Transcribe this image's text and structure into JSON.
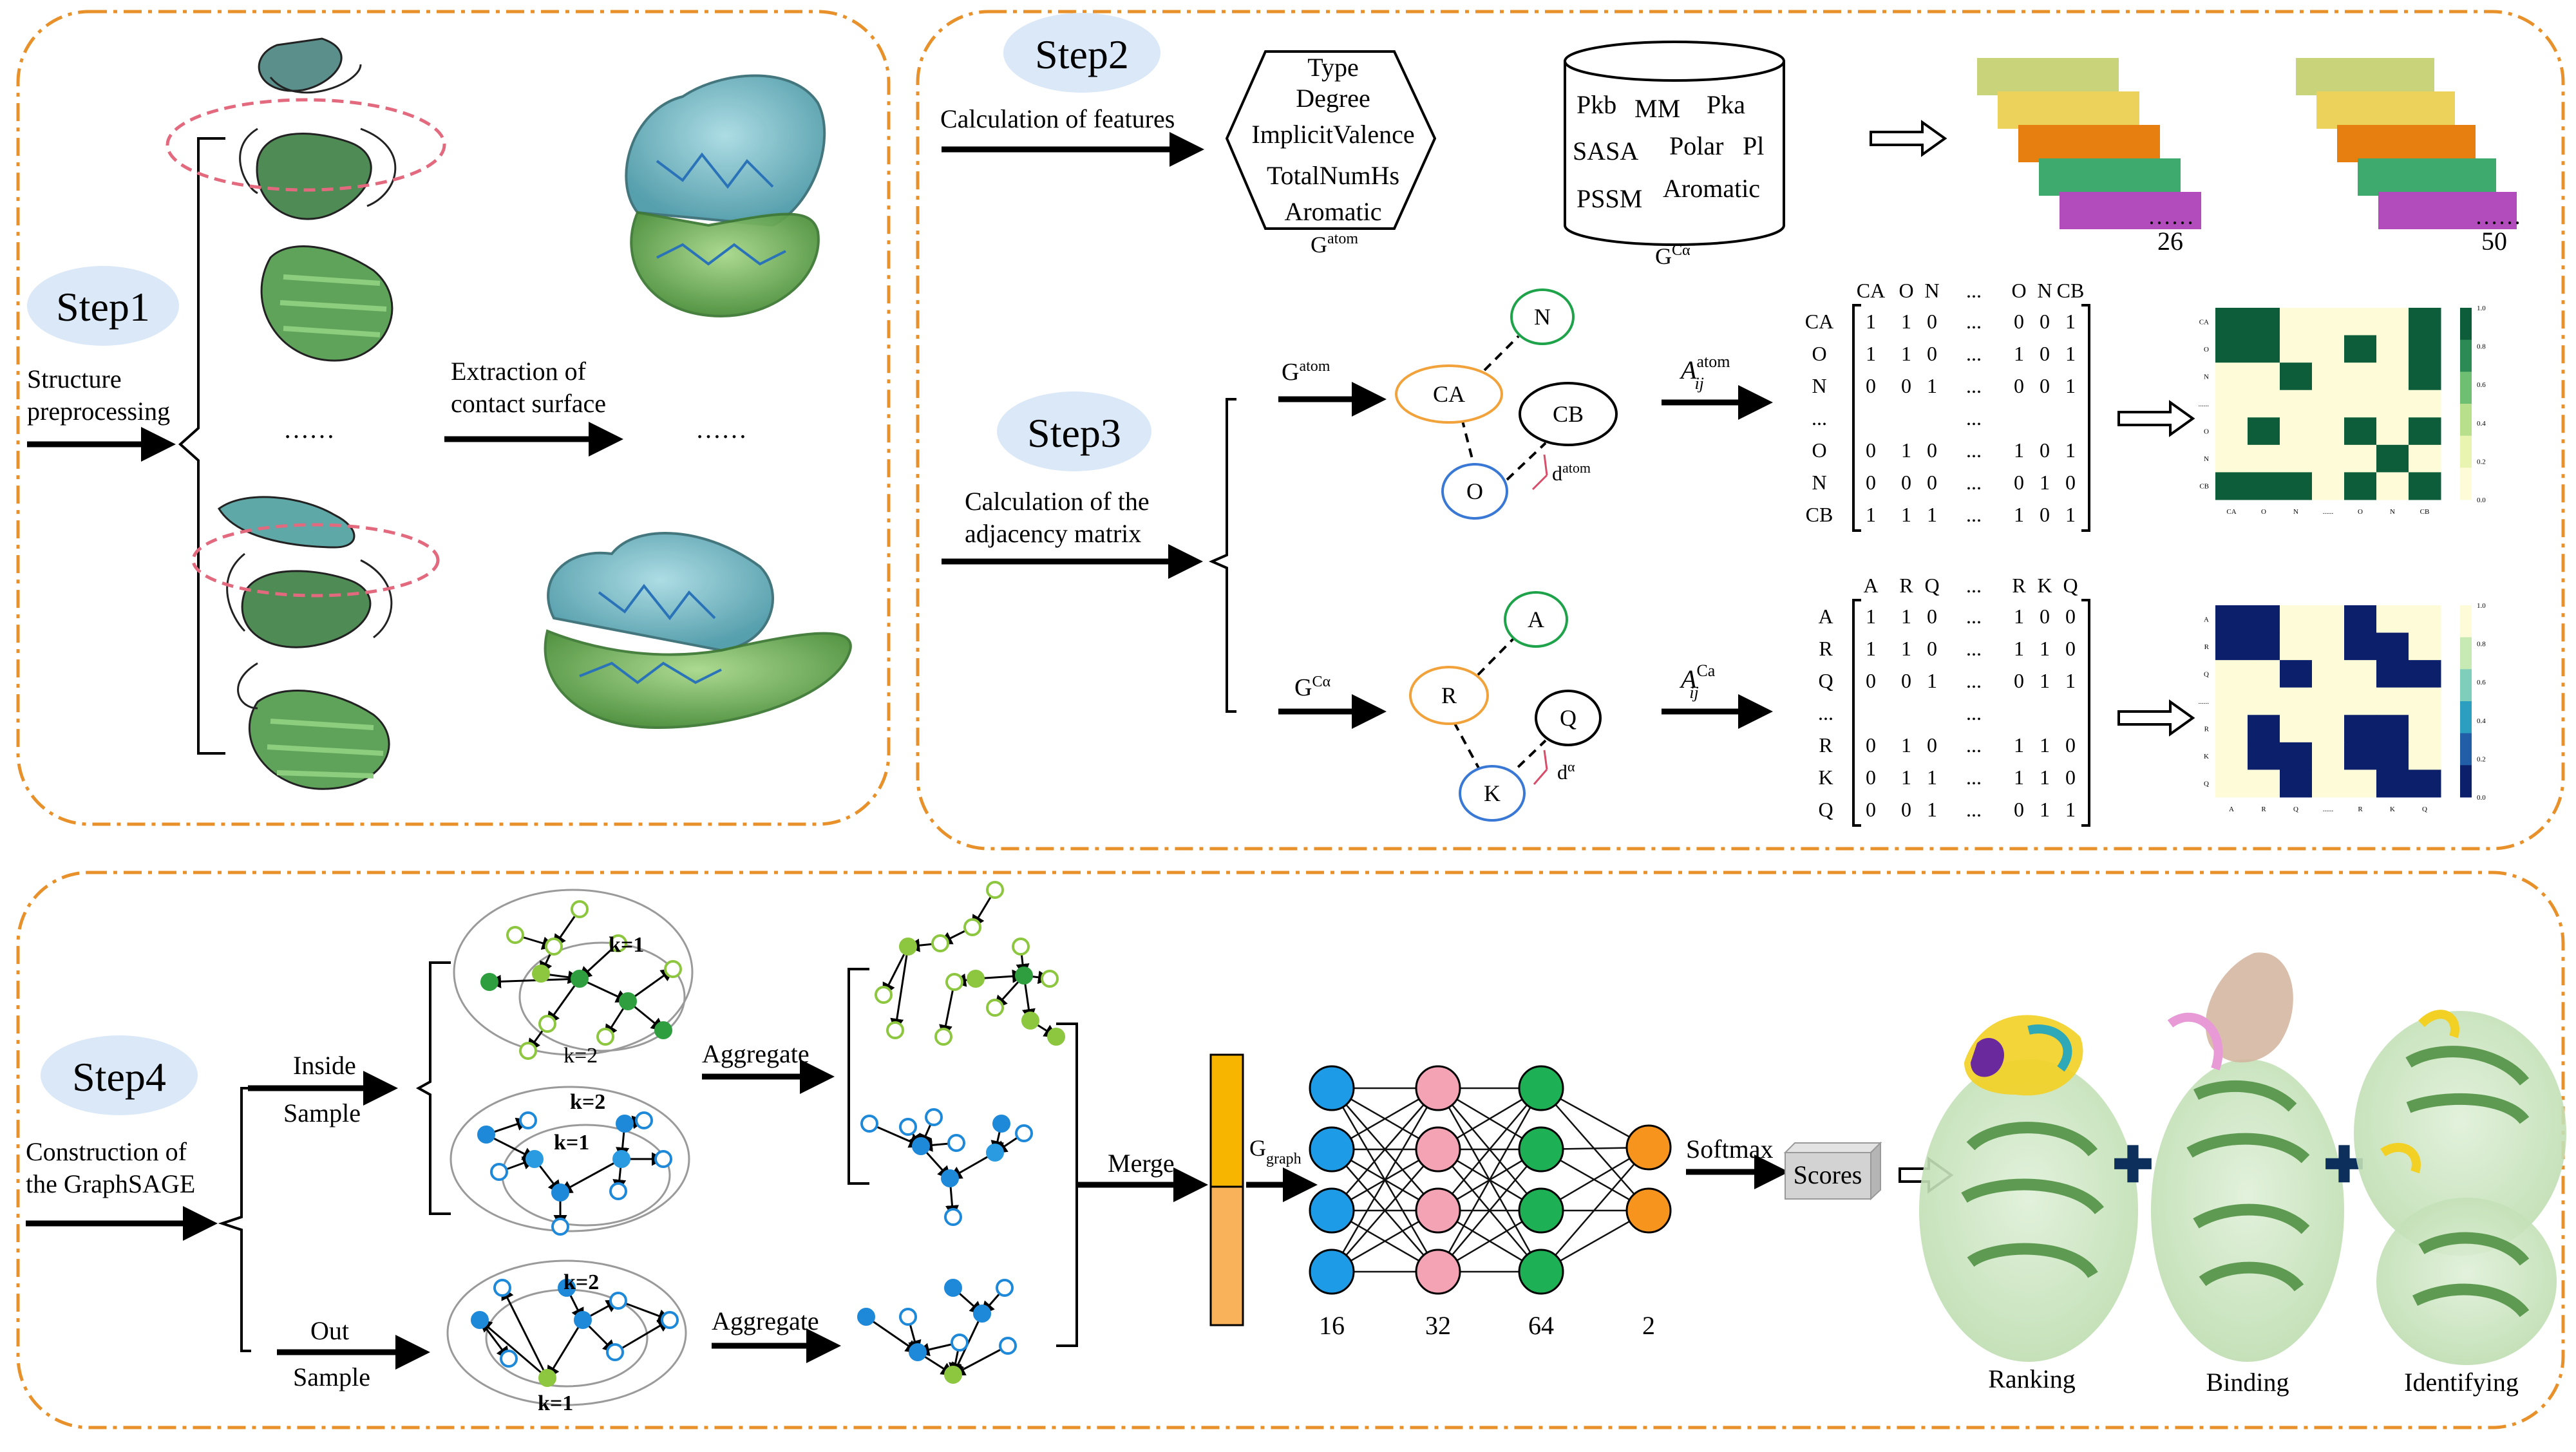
{
  "steps": {
    "step1": {
      "badge": "Step1",
      "preprocess_label": [
        "Structure",
        "preprocessing"
      ],
      "extraction_label": [
        "Extraction of",
        "contact surface"
      ],
      "dots": "……",
      "dots2": "……"
    },
    "step2": {
      "badge": "Step2",
      "features_label": "Calculation of features",
      "atom_features": [
        "Type",
        "Degree",
        "ImplicitValence",
        "TotalNumHs",
        "Aromatic"
      ],
      "atom_graph_label": "G",
      "atom_graph_sup": "atom",
      "ca_features": [
        "Pkb",
        "MM",
        "Pka",
        "SASA",
        "Polar",
        "Pl",
        "PSSM",
        "Aromatic"
      ],
      "ca_graph_label": "G",
      "ca_graph_sup": "Cα",
      "stack1_count": "26",
      "stack2_count": "50",
      "stack_dots": "……",
      "stack_colors": [
        "#c8d37a",
        "#ecd25a",
        "#e67e10",
        "#3faa6e",
        "#b24bbb"
      ]
    },
    "step3": {
      "badge": "Step3",
      "adj_label": [
        "Calculation of the",
        "adjacency matrix"
      ],
      "g_atom": "G",
      "g_atom_sup": "atom",
      "g_ca": "G",
      "g_ca_sup": "Cα",
      "atom_nodes": [
        "N",
        "CA",
        "CB",
        "O"
      ],
      "atom_dist": "d",
      "atom_dist_sup": "atom",
      "res_nodes": [
        "A",
        "R",
        "Q",
        "K"
      ],
      "res_dist": "d",
      "res_dist_sup": "α",
      "A_atom_label": "A",
      "A_atom_sub": "ij",
      "A_atom_sup": "atom",
      "A_ca_label": "A",
      "A_ca_sub": "ij",
      "A_ca_sup": "Ca",
      "matrix_atom": {
        "cols": [
          "CA",
          "O",
          "N",
          "...",
          "O",
          "N",
          "CB"
        ],
        "rows": [
          "CA",
          "O",
          "N",
          "...",
          "O",
          "N",
          "CB"
        ],
        "cells": [
          [
            "1",
            "1",
            "0",
            "...",
            "0",
            "0",
            "1"
          ],
          [
            "1",
            "1",
            "0",
            "...",
            "1",
            "0",
            "1"
          ],
          [
            "0",
            "0",
            "1",
            "...",
            "0",
            "0",
            "1"
          ],
          [
            "",
            "",
            "",
            "...",
            "",
            "",
            ""
          ],
          [
            "0",
            "1",
            "0",
            "...",
            "1",
            "0",
            "1"
          ],
          [
            "0",
            "0",
            "0",
            "...",
            "0",
            "1",
            "0"
          ],
          [
            "1",
            "1",
            "1",
            "...",
            "1",
            "0",
            "1"
          ]
        ]
      },
      "matrix_ca": {
        "cols": [
          "A",
          "R",
          "Q",
          "...",
          "R",
          "K",
          "Q"
        ],
        "rows": [
          "A",
          "R",
          "Q",
          "...",
          "R",
          "K",
          "Q"
        ],
        "cells": [
          [
            "1",
            "1",
            "0",
            "...",
            "1",
            "0",
            "0"
          ],
          [
            "1",
            "1",
            "0",
            "...",
            "1",
            "1",
            "0"
          ],
          [
            "0",
            "0",
            "1",
            "...",
            "0",
            "1",
            "1"
          ],
          [
            "",
            "",
            "",
            "...",
            "",
            "",
            ""
          ],
          [
            "0",
            "1",
            "0",
            "...",
            "1",
            "1",
            "0"
          ],
          [
            "0",
            "1",
            "1",
            "...",
            "1",
            "1",
            "0"
          ],
          [
            "0",
            "0",
            "1",
            "...",
            "0",
            "1",
            "1"
          ]
        ]
      },
      "heatmap_atom": {
        "labels": [
          "CA",
          "O",
          "N",
          "......",
          "O",
          "N",
          "CB"
        ],
        "cbar": [
          "1.0",
          "0.8",
          "0.6",
          "0.4",
          "0.2",
          "0.0"
        ],
        "on_color": "#0d5c3a",
        "off_color": "#fdfbd8"
      },
      "heatmap_ca": {
        "labels": [
          "A",
          "R",
          "Q",
          "......",
          "R",
          "K",
          "Q"
        ],
        "cbar": [
          "1.0",
          "0.8",
          "0.6",
          "0.4",
          "0.2",
          "0.0"
        ],
        "on_color": "#0c1f6b",
        "off_color": "#fdfbd8"
      }
    },
    "step4": {
      "badge": "Step4",
      "construct_label": [
        "Construction of",
        "the GraphSAGE"
      ],
      "inside_label": [
        "Inside",
        "Sample"
      ],
      "out_label": [
        "Out",
        "Sample"
      ],
      "k1": "k=1",
      "k2": "k=2",
      "aggregate": "Aggregate",
      "merge": "Merge",
      "g_graph": "G",
      "g_graph_sub": "graph",
      "layers": [
        {
          "count": 4,
          "label": "16",
          "color": "#1e9be6"
        },
        {
          "count": 4,
          "label": "32",
          "color": "#f4a3b4"
        },
        {
          "count": 4,
          "label": "64",
          "color": "#1db055"
        },
        {
          "count": 2,
          "label": "2",
          "color": "#f7941d"
        }
      ],
      "softmax": "Softmax",
      "scores": "Scores",
      "outcomes": [
        "Ranking",
        "Binding",
        "Identifying"
      ]
    }
  }
}
